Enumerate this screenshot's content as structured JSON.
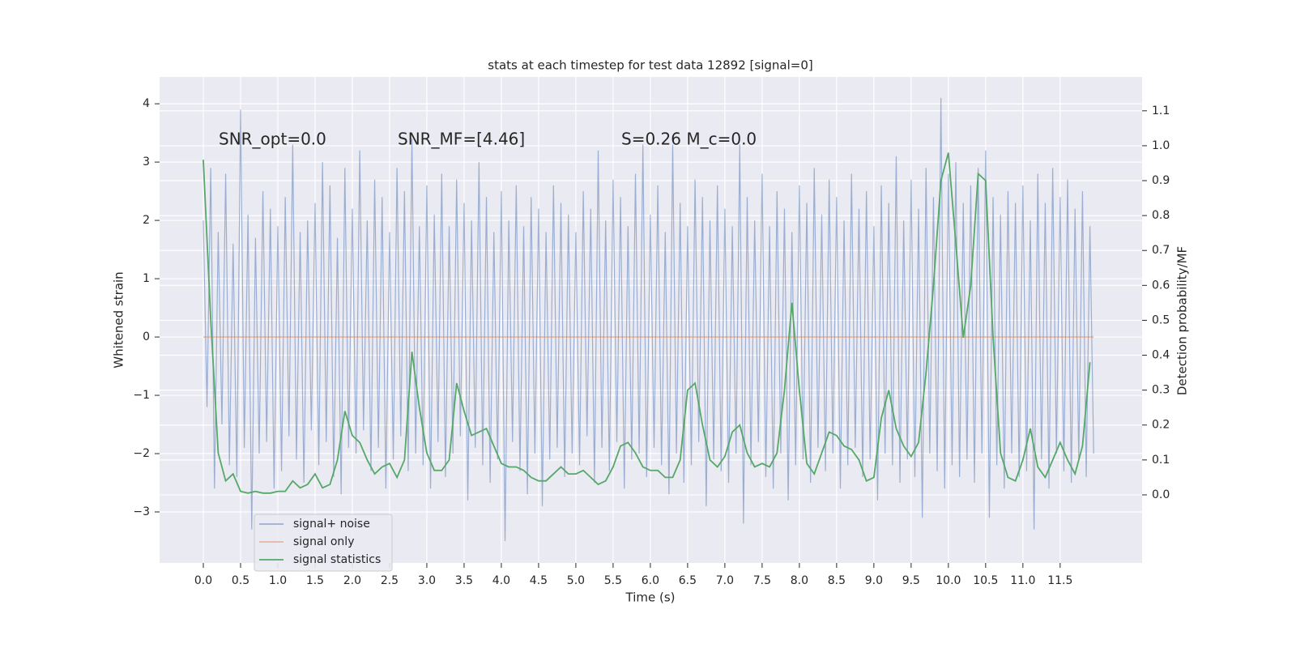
{
  "chart_data": {
    "type": "line",
    "title": "stats at each timestep for test data 12892 [signal=0]",
    "xlabel": "Time (s)",
    "ylabel": "Whitened strain",
    "y2label": "Detection probability/MF",
    "annotations": [
      "SNR_opt=0.0",
      "SNR_MF=[4.46]",
      "S=0.26   M_c=0.0"
    ],
    "xlim": [
      -0.587,
      12.6
    ],
    "ylim": [
      -3.875,
      4.46
    ],
    "y2lim": [
      -0.195,
      1.197
    ],
    "xticks": [
      {
        "value": 0,
        "label": "0.0"
      },
      0.5,
      {
        "value": 1,
        "label": "1.0"
      },
      1.5,
      {
        "value": 2,
        "label": "2.0"
      },
      2.5,
      {
        "value": 3,
        "label": "3.0"
      },
      3.5,
      {
        "value": 4,
        "label": "4.0"
      },
      4.5,
      {
        "value": 5,
        "label": "5.0"
      },
      5.5,
      {
        "value": 6,
        "label": "6.0"
      },
      6.5,
      {
        "value": 7,
        "label": "7.0"
      },
      7.5,
      {
        "value": 8,
        "label": "8.0"
      },
      8.5,
      {
        "value": 9,
        "label": "9.0"
      },
      9.5,
      {
        "value": 10,
        "label": "10.0"
      },
      10.5,
      {
        "value": 11,
        "label": "11.0"
      },
      11.5
    ],
    "yticks": [
      {
        "value": -3,
        "label": "−3"
      },
      {
        "value": -2,
        "label": "−2"
      },
      {
        "value": -1,
        "label": "−1"
      },
      0,
      1,
      2,
      3,
      4
    ],
    "y2ticks": [
      {
        "value": 0,
        "label": "0.0"
      },
      0.1,
      0.2,
      0.3,
      0.4,
      0.5,
      0.6,
      0.7,
      0.8,
      0.9,
      {
        "value": 1,
        "label": "1.0"
      },
      1.1
    ],
    "grid": true,
    "legend": "lower left",
    "series": [
      {
        "name": "signal+ noise",
        "color": "#4c72b0",
        "x": [
          0,
          0.05,
          0.1,
          0.15,
          0.2,
          0.25,
          0.3,
          0.35,
          0.4,
          0.45,
          0.5,
          0.55,
          0.6,
          0.65,
          0.7,
          0.75,
          0.8,
          0.85,
          0.9,
          0.95,
          1,
          1.05,
          1.1,
          1.15,
          1.2,
          1.25,
          1.3,
          1.35,
          1.4,
          1.45,
          1.5,
          1.55,
          1.6,
          1.65,
          1.7,
          1.75,
          1.8,
          1.85,
          1.9,
          1.95,
          2,
          2.05,
          2.1,
          2.15,
          2.2,
          2.25,
          2.3,
          2.35,
          2.4,
          2.45,
          2.5,
          2.55,
          2.6,
          2.65,
          2.7,
          2.75,
          2.8,
          2.85,
          2.9,
          2.95,
          3,
          3.05,
          3.1,
          3.15,
          3.2,
          3.25,
          3.3,
          3.35,
          3.4,
          3.45,
          3.5,
          3.55,
          3.6,
          3.65,
          3.7,
          3.75,
          3.8,
          3.85,
          3.9,
          3.95,
          4,
          4.05,
          4.1,
          4.15,
          4.2,
          4.25,
          4.3,
          4.35,
          4.4,
          4.45,
          4.5,
          4.55,
          4.6,
          4.65,
          4.7,
          4.75,
          4.8,
          4.85,
          4.9,
          4.95,
          5,
          5.05,
          5.1,
          5.15,
          5.2,
          5.25,
          5.3,
          5.35,
          5.4,
          5.45,
          5.5,
          5.55,
          5.6,
          5.65,
          5.7,
          5.75,
          5.8,
          5.85,
          5.9,
          5.95,
          6,
          6.05,
          6.1,
          6.15,
          6.2,
          6.25,
          6.3,
          6.35,
          6.4,
          6.45,
          6.5,
          6.55,
          6.6,
          6.65,
          6.7,
          6.75,
          6.8,
          6.85,
          6.9,
          6.95,
          7,
          7.05,
          7.1,
          7.15,
          7.2,
          7.25,
          7.3,
          7.35,
          7.4,
          7.45,
          7.5,
          7.55,
          7.6,
          7.65,
          7.7,
          7.75,
          7.8,
          7.85,
          7.9,
          7.95,
          8,
          8.05,
          8.1,
          8.15,
          8.2,
          8.25,
          8.3,
          8.35,
          8.4,
          8.45,
          8.5,
          8.55,
          8.6,
          8.65,
          8.7,
          8.75,
          8.8,
          8.85,
          8.9,
          8.95,
          9,
          9.05,
          9.1,
          9.15,
          9.2,
          9.25,
          9.3,
          9.35,
          9.4,
          9.45,
          9.5,
          9.55,
          9.6,
          9.65,
          9.7,
          9.75,
          9.8,
          9.85,
          9.9,
          9.95,
          10,
          10.05,
          10.1,
          10.15,
          10.2,
          10.25,
          10.3,
          10.35,
          10.4,
          10.45,
          10.5,
          10.55,
          10.6,
          10.65,
          10.7,
          10.75,
          10.8,
          10.85,
          10.9,
          10.95,
          11,
          11.05,
          11.1,
          11.15,
          11.2,
          11.25,
          11.3,
          11.35,
          11.4,
          11.45,
          11.5,
          11.55,
          11.6,
          11.65,
          11.7,
          11.75,
          11.8,
          11.85,
          11.9,
          11.95
        ],
        "values": [
          2.0,
          -1.2,
          2.9,
          -2.6,
          1.8,
          -1.5,
          2.8,
          -2.2,
          1.6,
          -2.4,
          3.9,
          -1.9,
          2.1,
          -3.3,
          1.7,
          -2.0,
          2.5,
          -1.8,
          2.2,
          -2.6,
          1.9,
          -2.3,
          2.4,
          -1.7,
          3.3,
          -2.1,
          1.8,
          -2.5,
          2.0,
          -1.6,
          2.3,
          -2.2,
          3.0,
          -1.8,
          2.6,
          -2.4,
          1.7,
          -2.7,
          2.9,
          -1.9,
          2.2,
          -2.0,
          3.2,
          -1.6,
          2.0,
          -2.3,
          2.7,
          -1.9,
          2.4,
          -2.6,
          1.8,
          -2.1,
          2.9,
          -1.7,
          2.5,
          -2.3,
          3.4,
          -2.0,
          1.9,
          -2.2,
          2.6,
          -2.6,
          2.1,
          -1.8,
          2.8,
          -2.4,
          1.9,
          -2.0,
          2.7,
          -1.7,
          2.3,
          -2.8,
          2.0,
          -1.9,
          3.0,
          -2.2,
          2.4,
          -2.5,
          1.8,
          -2.1,
          2.5,
          -3.5,
          2.0,
          -1.8,
          2.6,
          -2.3,
          1.9,
          -2.7,
          2.4,
          -2.0,
          2.2,
          -2.9,
          1.8,
          -2.1,
          2.6,
          -1.9,
          2.3,
          -2.4,
          2.1,
          -2.0,
          1.8,
          -2.2,
          2.5,
          -1.7,
          2.2,
          -2.5,
          3.2,
          -1.9,
          2.0,
          -2.3,
          2.7,
          -1.8,
          2.4,
          -2.6,
          1.9,
          -2.1,
          2.8,
          -2.0,
          3.3,
          -2.4,
          2.1,
          -1.9,
          2.6,
          -2.2,
          1.8,
          -2.7,
          3.3,
          -2.0,
          2.3,
          -2.5,
          1.9,
          -2.2,
          2.7,
          -1.8,
          2.4,
          -2.9,
          2.0,
          -2.1,
          2.6,
          -2.3,
          2.2,
          -2.5,
          1.9,
          -2.0,
          3.3,
          -3.2,
          2.4,
          -2.2,
          2.0,
          -1.8,
          2.8,
          -2.4,
          1.9,
          -2.6,
          2.5,
          -2.0,
          2.2,
          -2.8,
          1.8,
          -2.2,
          2.6,
          -2.1,
          2.3,
          -2.5,
          2.9,
          -1.9,
          2.1,
          -2.3,
          2.7,
          -2.0,
          2.4,
          -2.6,
          2.0,
          -2.2,
          2.8,
          -1.9,
          2.2,
          -2.4,
          2.5,
          -2.1,
          1.9,
          -2.8,
          2.6,
          -2.0,
          2.3,
          -2.2,
          3.1,
          -2.5,
          2.0,
          -2.1,
          2.7,
          -2.4,
          2.2,
          -3.1,
          2.9,
          -2.0,
          2.4,
          -2.3,
          4.1,
          -2.6,
          2.8,
          -2.2,
          3.0,
          -2.4,
          2.3,
          -2.1,
          2.6,
          -2.5,
          2.9,
          -2.0,
          3.2,
          -3.1,
          2.4,
          -2.2,
          2.1,
          -2.6,
          2.5,
          -2.0,
          2.3,
          -2.4,
          2.6,
          -2.3,
          2.0,
          -3.3,
          2.8,
          -2.1,
          2.3,
          -2.6,
          2.9,
          -2.0,
          2.4,
          -2.3,
          2.7,
          -2.5,
          2.2,
          -2.1,
          2.5,
          -2.4,
          1.9,
          -2.0
        ]
      },
      {
        "name": "signal only",
        "color": "#dd8452",
        "x": [
          0,
          11.95
        ],
        "values": [
          0,
          0
        ]
      },
      {
        "name": "signal statistics",
        "color": "#55a868",
        "axis": "y2",
        "x": [
          0,
          0.1,
          0.2,
          0.3,
          0.4,
          0.5,
          0.6,
          0.7,
          0.8,
          0.9,
          1,
          1.1,
          1.2,
          1.3,
          1.4,
          1.5,
          1.6,
          1.7,
          1.8,
          1.9,
          2,
          2.1,
          2.2,
          2.3,
          2.4,
          2.5,
          2.6,
          2.7,
          2.8,
          2.9,
          3,
          3.1,
          3.2,
          3.3,
          3.4,
          3.5,
          3.6,
          3.7,
          3.8,
          3.9,
          4,
          4.1,
          4.2,
          4.3,
          4.4,
          4.5,
          4.6,
          4.7,
          4.8,
          4.9,
          5,
          5.1,
          5.2,
          5.3,
          5.4,
          5.5,
          5.6,
          5.7,
          5.8,
          5.9,
          6,
          6.1,
          6.2,
          6.3,
          6.4,
          6.5,
          6.6,
          6.7,
          6.8,
          6.9,
          7,
          7.1,
          7.2,
          7.3,
          7.4,
          7.5,
          7.6,
          7.7,
          7.8,
          7.9,
          8,
          8.1,
          8.2,
          8.3,
          8.4,
          8.5,
          8.6,
          8.7,
          8.8,
          8.9,
          9,
          9.1,
          9.2,
          9.3,
          9.4,
          9.5,
          9.6,
          9.7,
          9.8,
          9.9,
          10,
          10.1,
          10.2,
          10.3,
          10.4,
          10.5,
          10.6,
          10.7,
          10.8,
          10.9,
          11,
          11.1,
          11.2,
          11.3,
          11.4,
          11.5,
          11.6,
          11.7,
          11.8,
          11.9
        ],
        "values": [
          0.96,
          0.5,
          0.12,
          0.04,
          0.06,
          0.01,
          0.005,
          0.01,
          0.005,
          0.005,
          0.01,
          0.01,
          0.04,
          0.02,
          0.03,
          0.06,
          0.02,
          0.03,
          0.1,
          0.24,
          0.17,
          0.15,
          0.1,
          0.06,
          0.08,
          0.09,
          0.05,
          0.1,
          0.41,
          0.25,
          0.12,
          0.07,
          0.07,
          0.1,
          0.32,
          0.24,
          0.17,
          0.18,
          0.19,
          0.14,
          0.09,
          0.08,
          0.08,
          0.07,
          0.05,
          0.04,
          0.04,
          0.06,
          0.08,
          0.06,
          0.06,
          0.07,
          0.05,
          0.03,
          0.04,
          0.08,
          0.14,
          0.15,
          0.12,
          0.08,
          0.07,
          0.07,
          0.05,
          0.05,
          0.1,
          0.3,
          0.32,
          0.2,
          0.1,
          0.08,
          0.11,
          0.18,
          0.2,
          0.12,
          0.08,
          0.09,
          0.08,
          0.12,
          0.3,
          0.55,
          0.3,
          0.09,
          0.06,
          0.12,
          0.18,
          0.17,
          0.14,
          0.13,
          0.1,
          0.04,
          0.05,
          0.22,
          0.3,
          0.19,
          0.14,
          0.11,
          0.15,
          0.35,
          0.6,
          0.9,
          0.98,
          0.72,
          0.45,
          0.6,
          0.92,
          0.9,
          0.45,
          0.12,
          0.05,
          0.04,
          0.1,
          0.19,
          0.08,
          0.05,
          0.1,
          0.15,
          0.1,
          0.06,
          0.14,
          0.38
        ]
      }
    ]
  }
}
